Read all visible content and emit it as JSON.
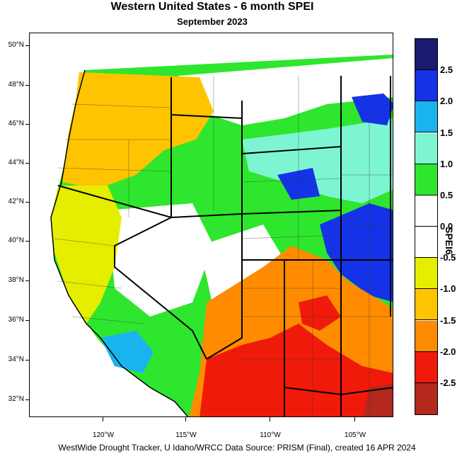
{
  "title": "Western United States - 6 month SPEI",
  "subtitle": "September 2023",
  "footer": "WestWide Drought Tracker, U Idaho/WRCC Data Source: PRISM (Final), created 16 APR 2024",
  "colorbar": {
    "title": "SPEI6",
    "labels": [
      "2.5",
      "2.0",
      "1.5",
      "1.0",
      "0.5",
      "0.0",
      "-0.5",
      "-1.0",
      "-1.5",
      "-2.0",
      "-2.5"
    ],
    "colors": [
      "#1a1a6e",
      "#1432e6",
      "#19b4f0",
      "#7ef5d2",
      "#2ee62e",
      "#ffffff",
      "#ffffff",
      "#e6ee00",
      "#ffc400",
      "#ff8c00",
      "#f01a0a",
      "#b4281e"
    ]
  },
  "axes": {
    "lat_labels": [
      "50°N",
      "48°N",
      "46°N",
      "44°N",
      "42°N",
      "40°N",
      "38°N",
      "36°N",
      "34°N",
      "32°N"
    ],
    "lon_labels": [
      "120°W",
      "115°W",
      "110°W",
      "105°W"
    ]
  },
  "map_regions": [
    {
      "name": "pacific-northwest",
      "category": "-1.0",
      "color": "#ffc400"
    },
    {
      "name": "oregon-washington-west",
      "category": "-0.5",
      "color": "#e6ee00"
    },
    {
      "name": "idaho-wyoming-great-basin",
      "category": "0.5",
      "color": "#2ee62e"
    },
    {
      "name": "northern-plains",
      "category": "1.0",
      "color": "#7ef5d2"
    },
    {
      "name": "colorado-high-plains",
      "category": "2.0",
      "color": "#1432e6"
    },
    {
      "name": "southern-nevada-california",
      "category": "1.5",
      "color": "#19b4f0"
    },
    {
      "name": "four-corners-southwest",
      "category": "-1.5",
      "color": "#ff8c00"
    },
    {
      "name": "arizona-new-mexico-south",
      "category": "-2.0",
      "color": "#f01a0a"
    }
  ]
}
